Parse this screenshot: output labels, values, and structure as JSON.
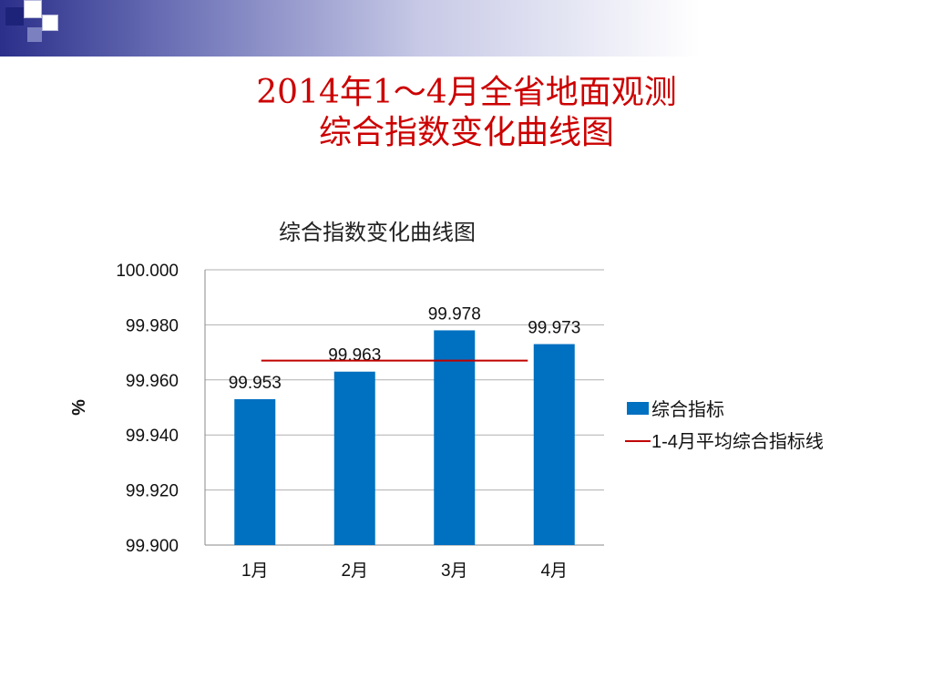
{
  "slide": {
    "title_line1": "2014年1～4月全省地面观测",
    "title_line2": "综合指数变化曲线图"
  },
  "colors": {
    "title": "#cc0000",
    "bar": "#0070c0",
    "avg_line": "#c00000",
    "grid": "#b0b0b0",
    "header_dark": "#2b2f8a"
  },
  "chart_data": {
    "type": "bar",
    "title": "综合指数变化曲线图",
    "ylabel": "%",
    "xlabel": "",
    "categories": [
      "1月",
      "2月",
      "3月",
      "4月"
    ],
    "series": [
      {
        "name": "综合指标",
        "type": "bar",
        "values": [
          99.953,
          99.963,
          99.978,
          99.973
        ]
      },
      {
        "name": "1-4月平均综合指标线",
        "type": "line",
        "values": [
          99.967,
          99.967,
          99.967,
          99.967
        ]
      }
    ],
    "data_labels": [
      "99.953",
      "99.963",
      "99.978",
      "99.973"
    ],
    "ylim": [
      99.9,
      100.0
    ],
    "yticks": [
      "100.000",
      "99.980",
      "99.960",
      "99.940",
      "99.920",
      "99.900"
    ],
    "ytick_values": [
      100.0,
      99.98,
      99.96,
      99.94,
      99.92,
      99.9
    ],
    "grid": true,
    "legend_position": "right"
  }
}
